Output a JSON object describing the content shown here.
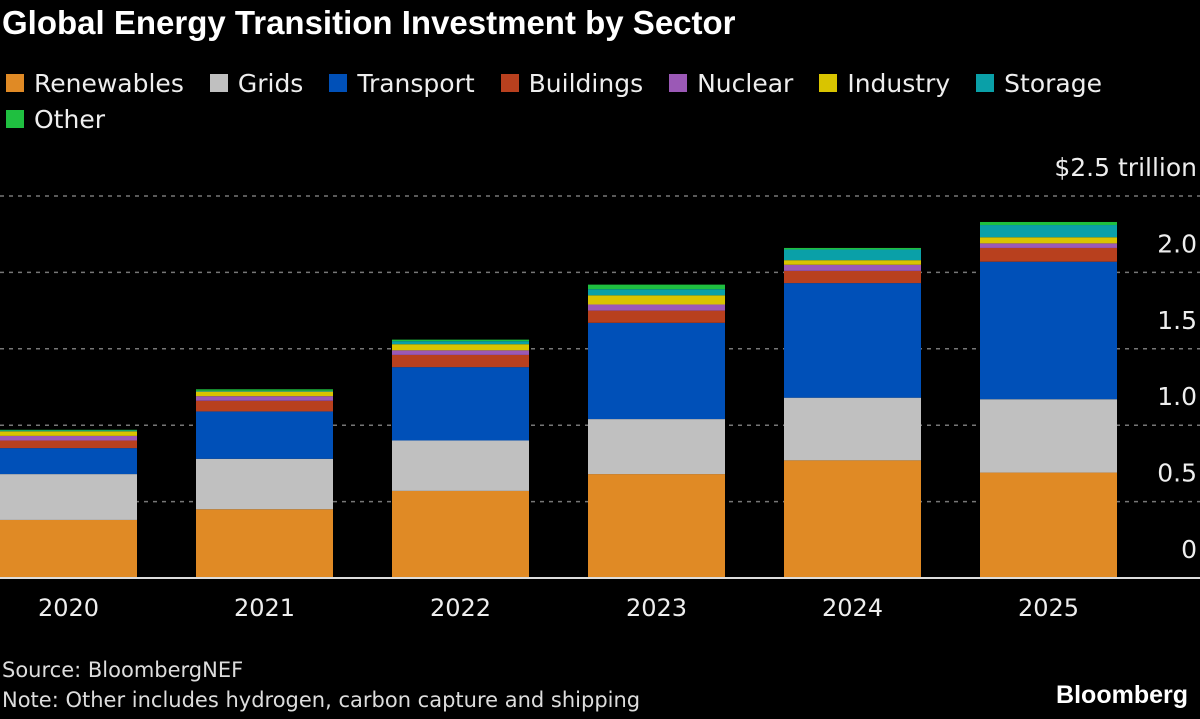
{
  "title": "Global Energy Transition Investment by Sector",
  "source": "Source: BloombergNEF",
  "note": "Note: Other includes hydrogen, carbon capture and shipping",
  "logo": "Bloomberg",
  "chart_data": {
    "type": "bar",
    "stacked": true,
    "title": "Global Energy Transition Investment by Sector",
    "xlabel": "",
    "ylabel": "",
    "unit_label": "$2.5 trillion",
    "ylim": [
      0,
      2.5
    ],
    "grid": true,
    "legend_position": "top",
    "categories": [
      "2020",
      "2021",
      "2022",
      "2023",
      "2024",
      "2025"
    ],
    "y_ticks": [
      {
        "value": 0,
        "label": "0"
      },
      {
        "value": 0.5,
        "label": "0.5"
      },
      {
        "value": 1.0,
        "label": "1.0"
      },
      {
        "value": 1.5,
        "label": "1.5"
      },
      {
        "value": 2.0,
        "label": "2.0"
      },
      {
        "value": 2.5,
        "label": "$2.5 trillion"
      }
    ],
    "series": [
      {
        "name": "Renewables",
        "color": "#e08a25",
        "values": [
          0.38,
          0.45,
          0.57,
          0.68,
          0.77,
          0.69
        ]
      },
      {
        "name": "Grids",
        "color": "#c0c0c0",
        "values": [
          0.3,
          0.33,
          0.33,
          0.36,
          0.41,
          0.48
        ]
      },
      {
        "name": "Transport",
        "color": "#0050b8",
        "values": [
          0.17,
          0.31,
          0.48,
          0.63,
          0.75,
          0.9
        ]
      },
      {
        "name": "Buildings",
        "color": "#b8401e",
        "values": [
          0.05,
          0.07,
          0.08,
          0.08,
          0.08,
          0.09
        ]
      },
      {
        "name": "Nuclear",
        "color": "#9b59b6",
        "values": [
          0.03,
          0.03,
          0.03,
          0.04,
          0.04,
          0.03
        ]
      },
      {
        "name": "Industry",
        "color": "#d9c400",
        "values": [
          0.03,
          0.03,
          0.04,
          0.06,
          0.03,
          0.04
        ]
      },
      {
        "name": "Storage",
        "color": "#0aa0a8",
        "values": [
          0.005,
          0.005,
          0.02,
          0.04,
          0.07,
          0.08
        ]
      },
      {
        "name": "Other",
        "color": "#1fbf40",
        "values": [
          0.005,
          0.01,
          0.01,
          0.03,
          0.01,
          0.02
        ]
      }
    ]
  }
}
